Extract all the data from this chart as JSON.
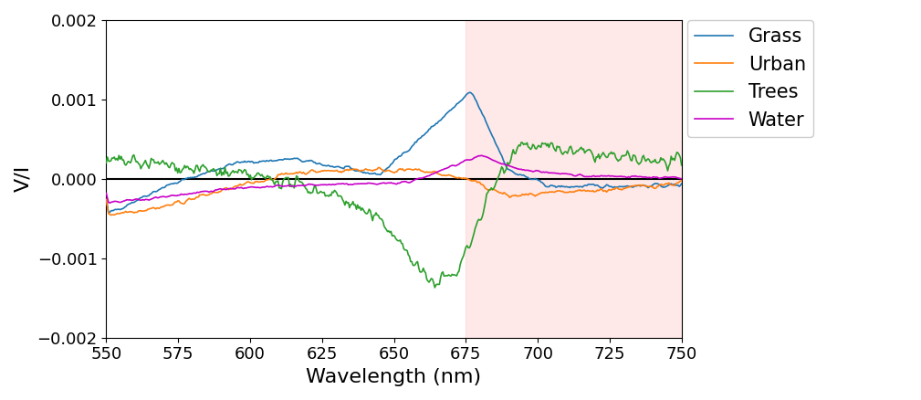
{
  "title": "",
  "xlabel": "Wavelength (nm)",
  "ylabel": "V/I",
  "xlim": [
    550,
    750
  ],
  "ylim": [
    -0.002,
    0.002
  ],
  "xticks": [
    550,
    575,
    600,
    625,
    650,
    675,
    700,
    725,
    750
  ],
  "yticks": [
    -0.002,
    -0.001,
    0.0,
    0.001,
    0.002
  ],
  "shaded_region": [
    675,
    750
  ],
  "shaded_color": "#ffcccc",
  "shaded_alpha": 0.45,
  "colors": {
    "grass": "#1f77b4",
    "urban": "#ff7f0e",
    "trees": "#2ca02c",
    "water": "#c800c8"
  },
  "legend_labels": [
    "Grass",
    "Urban",
    "Trees",
    "Water"
  ],
  "legend_fontsize": 15,
  "axis_label_fontsize": 16,
  "tick_fontsize": 13,
  "figsize": [
    10.09,
    4.38
  ],
  "dpi": 100
}
